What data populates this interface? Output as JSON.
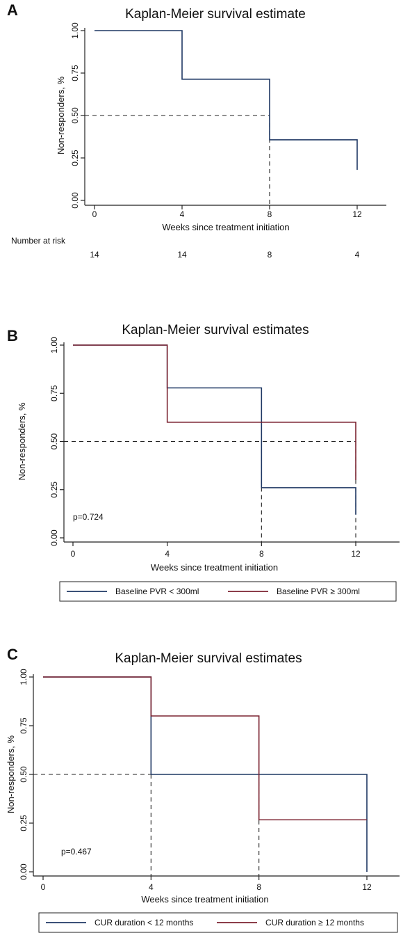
{
  "colors": {
    "navy": "#1f3864",
    "maroon": "#7b2330",
    "reference": "#222222"
  },
  "chart_data": [
    {
      "panel_label": "A",
      "type": "line",
      "step": "post",
      "title": "Kaplan-Meier survival estimate",
      "xlabel": "Weeks since treatment initiation",
      "ylabel": "Non-responders, %",
      "xlim": [
        0,
        12
      ],
      "ylim": [
        0,
        1
      ],
      "xticks": [
        "0",
        "4",
        "8",
        "12"
      ],
      "yticks": [
        "0.00",
        "0.25",
        "0.50",
        "0.75",
        "1.00"
      ],
      "series": [
        {
          "color": "#1f3864",
          "x": [
            0,
            4,
            8,
            12
          ],
          "y": [
            1.0,
            0.714,
            0.357,
            0.18
          ]
        }
      ],
      "median_lines": [
        {
          "x": 8,
          "y": 0.5
        }
      ],
      "risk_table": {
        "title": "Number at risk",
        "x": [
          0,
          4,
          8,
          12
        ],
        "values": [
          "14",
          "14",
          "8",
          "4"
        ]
      }
    },
    {
      "panel_label": "B",
      "type": "line",
      "step": "post",
      "title": "Kaplan-Meier survival estimates",
      "xlabel": "Weeks since treatment initiation",
      "ylabel": "Non-responders, %",
      "xlim": [
        0,
        12
      ],
      "ylim": [
        0,
        1
      ],
      "xticks": [
        "0",
        "4",
        "8",
        "12"
      ],
      "yticks": [
        "0.00",
        "0.25",
        "0.50",
        "0.75",
        "1.00"
      ],
      "annotation": "p=0.724",
      "series": [
        {
          "name": "Baseline PVR < 300ml",
          "color": "#1f3864",
          "x": [
            0,
            4,
            8,
            12
          ],
          "y": [
            1.0,
            0.778,
            0.26,
            0.12
          ]
        },
        {
          "name": "Baseline PVR ≥ 300ml",
          "color": "#7b2330",
          "x": [
            0,
            4,
            8,
            12
          ],
          "y": [
            1.0,
            0.6,
            0.6,
            0.3
          ]
        }
      ],
      "median_lines": [
        {
          "x": 8,
          "y": 0.5
        },
        {
          "x": 12,
          "y": 0.5
        }
      ],
      "legend": "bottom"
    },
    {
      "panel_label": "C",
      "type": "line",
      "step": "post",
      "title": "Kaplan-Meier survival estimates",
      "xlabel": "Weeks since treatment initiation",
      "ylabel": "Non-responders, %",
      "xlim": [
        0,
        12
      ],
      "ylim": [
        0,
        1
      ],
      "xticks": [
        "0",
        "4",
        "8",
        "12"
      ],
      "yticks": [
        "0.00",
        "0.25",
        "0.50",
        "0.75",
        "1.00"
      ],
      "annotation": "p=0.467",
      "series": [
        {
          "name": "CUR duration < 12 months",
          "color": "#1f3864",
          "x": [
            0,
            4,
            12
          ],
          "y": [
            1.0,
            0.5,
            0.0
          ]
        },
        {
          "name": "CUR duration ≥ 12 months",
          "color": "#7b2330",
          "x": [
            0,
            4,
            8,
            12
          ],
          "y": [
            1.0,
            0.8,
            0.267,
            0.267
          ]
        }
      ],
      "median_lines": [
        {
          "x": 4,
          "y": 0.5
        },
        {
          "x": 8,
          "y": 0.5
        }
      ],
      "legend": "bottom"
    }
  ]
}
